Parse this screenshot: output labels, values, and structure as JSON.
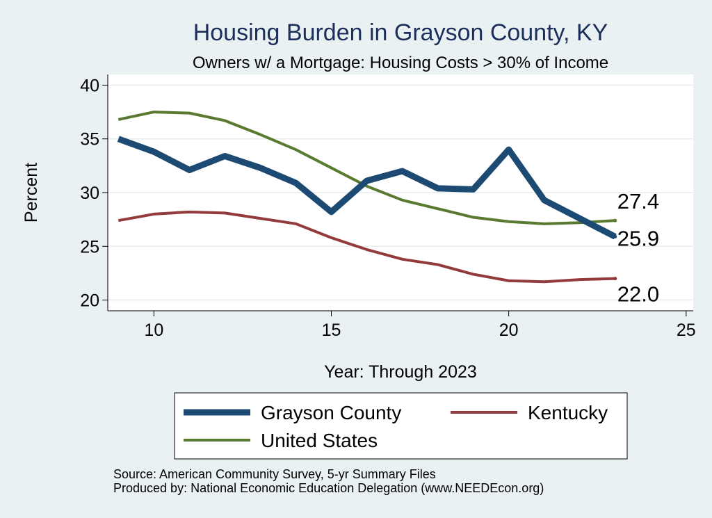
{
  "chart_data": {
    "type": "line",
    "title": "Housing Burden in Grayson County, KY",
    "subtitle": "Owners w/ a Mortgage: Housing Costs > 30% of Income",
    "xlabel": "Year: Through 2023",
    "ylabel": "Percent",
    "xlim": [
      8.7,
      25.2
    ],
    "ylim": [
      19,
      41
    ],
    "xticks": [
      10,
      15,
      20,
      25
    ],
    "yticks": [
      20,
      25,
      30,
      35,
      40
    ],
    "grid": true,
    "legend_position": "bottom",
    "x": [
      9,
      10,
      11,
      12,
      13,
      14,
      15,
      16,
      17,
      18,
      19,
      20,
      21,
      22,
      23
    ],
    "series": [
      {
        "name": "Grayson County",
        "color": "#1c4a72",
        "width": "thick",
        "values": [
          35.0,
          33.8,
          32.1,
          33.4,
          32.3,
          30.9,
          28.2,
          31.1,
          32.0,
          30.4,
          30.3,
          34.0,
          29.3,
          27.6,
          25.9
        ],
        "end_label": "25.9"
      },
      {
        "name": "Kentucky",
        "color": "#933a3c",
        "width": "thin",
        "values": [
          27.4,
          28.0,
          28.2,
          28.1,
          27.6,
          27.1,
          25.8,
          24.7,
          23.8,
          23.3,
          22.4,
          21.8,
          21.7,
          21.9,
          22.0
        ],
        "end_label": "22.0"
      },
      {
        "name": "United States",
        "color": "#5b7a31",
        "width": "thin",
        "values": [
          36.8,
          37.5,
          37.4,
          36.7,
          35.4,
          34.0,
          32.3,
          30.6,
          29.3,
          28.5,
          27.7,
          27.3,
          27.1,
          27.2,
          27.4
        ],
        "end_label": "27.4"
      }
    ],
    "legend_order": [
      "Grayson County",
      "Kentucky",
      "United States"
    ]
  },
  "notes": {
    "source": "Source: American Community Survey, 5-yr Summary Files",
    "produced_by": "Produced by: National Economic Education Delegation (www.NEEDEcon.org)"
  },
  "colors": {
    "page_background": "#eaf1f3",
    "plot_background": "#ffffff",
    "grid": "#e6ecef"
  }
}
